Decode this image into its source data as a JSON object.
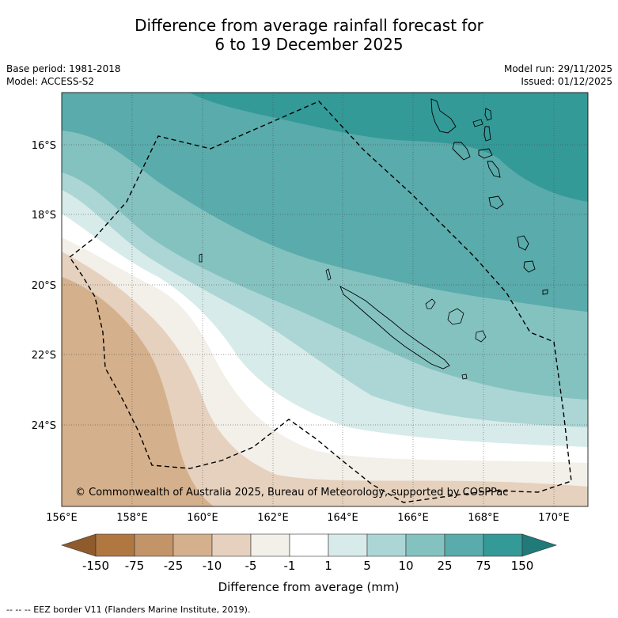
{
  "title": {
    "line1": "Difference from average rainfall forecast for",
    "line2": "6 to 19 December 2025"
  },
  "info": {
    "base_period": "Base period: 1981-2018",
    "model": "Model: ACCESS-S2",
    "model_run": "Model run: 29/11/2025",
    "issued": "Issued: 01/12/2025"
  },
  "map": {
    "lat_labels": [
      "16°S",
      "18°S",
      "20°S",
      "22°S",
      "24°S"
    ],
    "lon_labels": [
      "156°E",
      "158°E",
      "160°E",
      "162°E",
      "164°E",
      "166°E",
      "168°E",
      "170°E"
    ],
    "copyright": "© Commonwealth of Australia 2025, Bureau of Meteorology, supported by COSPPac"
  },
  "colorbar": {
    "ticks": [
      "-150",
      "-75",
      "-25",
      "-10",
      "-5",
      "-1",
      "1",
      "5",
      "10",
      "25",
      "75",
      "150"
    ],
    "colors": [
      "#8f5a2c",
      "#b07840",
      "#c29468",
      "#d4b08c",
      "#e5d1bd",
      "#f3efe9",
      "#ffffff",
      "#d7ebea",
      "#acd6d5",
      "#84c2c0",
      "#5aabab",
      "#349a98",
      "#1f7a78"
    ],
    "label": "Difference from average (mm)"
  },
  "legend": {
    "eez": "--  --  -- EEZ border V11 (Flanders Marine Institute, 2019)."
  }
}
